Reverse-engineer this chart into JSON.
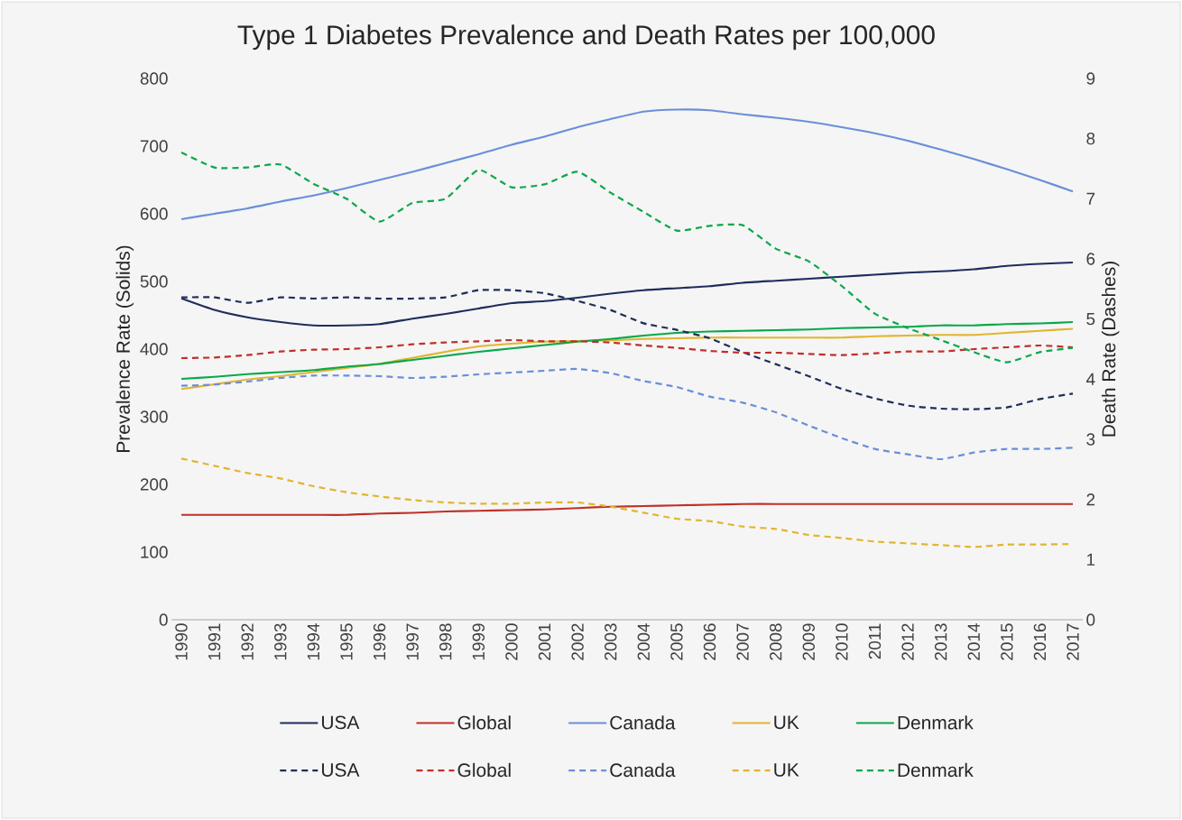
{
  "chart_data": {
    "type": "line",
    "title": "Type 1 Diabetes Prevalence and Death Rates per 100,000",
    "ylabel": "Prevalence Rate (Solids)",
    "y2label": "Death Rate (Dashes)",
    "categories": [
      "1990",
      "1991",
      "1992",
      "1993",
      "1994",
      "1995",
      "1996",
      "1997",
      "1998",
      "1999",
      "2000",
      "2001",
      "2002",
      "2003",
      "2004",
      "2005",
      "2006",
      "2007",
      "2008",
      "2009",
      "2010",
      "2011",
      "2012",
      "2013",
      "2014",
      "2015",
      "2016",
      "2017"
    ],
    "ylim": [
      0,
      800
    ],
    "yticks": [
      0,
      100,
      200,
      300,
      400,
      500,
      600,
      700,
      800
    ],
    "y2lim": [
      0,
      9
    ],
    "y2ticks": [
      0,
      1,
      2,
      3,
      4,
      5,
      6,
      7,
      8,
      9
    ],
    "grid": false,
    "legend": "bottom",
    "marker": "none",
    "series": [
      {
        "name": "USA",
        "color": "#1f2d5c",
        "line_style": "solid",
        "values": [
          475,
          458,
          447,
          440,
          435,
          435,
          437,
          445,
          452,
          460,
          468,
          471,
          476,
          482,
          487,
          490,
          493,
          498,
          501,
          504,
          507,
          510,
          513,
          515,
          518,
          523,
          526,
          528
        ]
      },
      {
        "name": "Global",
        "color": "#c0302a",
        "line_style": "solid",
        "values": [
          155,
          155,
          155,
          155,
          155,
          155,
          157,
          158,
          160,
          161,
          162,
          163,
          165,
          167,
          168,
          169,
          170,
          171,
          171,
          171,
          171,
          171,
          171,
          171,
          171,
          171,
          171,
          171
        ]
      },
      {
        "name": "Canada",
        "color": "#6a8fd8",
        "line_style": "solid",
        "values": [
          592,
          600,
          608,
          618,
          627,
          638,
          650,
          662,
          675,
          688,
          702,
          714,
          728,
          740,
          751,
          754,
          753,
          747,
          742,
          736,
          728,
          719,
          708,
          695,
          681,
          666,
          650,
          633
        ]
      },
      {
        "name": "UK",
        "color": "#e2b530",
        "line_style": "solid",
        "values": [
          341,
          348,
          355,
          360,
          366,
          372,
          378,
          387,
          396,
          404,
          408,
          411,
          412,
          413,
          415,
          416,
          417,
          417,
          417,
          417,
          417,
          419,
          420,
          421,
          421,
          424,
          427,
          430
        ]
      },
      {
        "name": "Denmark",
        "color": "#0aa84a",
        "line_style": "solid",
        "values": [
          356,
          359,
          363,
          366,
          369,
          374,
          378,
          384,
          390,
          396,
          401,
          406,
          411,
          415,
          420,
          424,
          426,
          427,
          428,
          429,
          431,
          432,
          433,
          435,
          435,
          437,
          438,
          440
        ]
      },
      {
        "name": "USA",
        "color": "#1f2d5c",
        "line_style": "dashed",
        "axis": "y2",
        "values": [
          5.36,
          5.36,
          5.27,
          5.36,
          5.34,
          5.36,
          5.34,
          5.34,
          5.36,
          5.48,
          5.48,
          5.43,
          5.3,
          5.15,
          4.93,
          4.82,
          4.68,
          4.45,
          4.25,
          4.05,
          3.84,
          3.68,
          3.56,
          3.51,
          3.5,
          3.53,
          3.67,
          3.76
        ]
      },
      {
        "name": "Global",
        "color": "#c0302a",
        "line_style": "dashed",
        "axis": "y2",
        "values": [
          4.35,
          4.36,
          4.4,
          4.46,
          4.49,
          4.5,
          4.53,
          4.58,
          4.61,
          4.63,
          4.65,
          4.63,
          4.63,
          4.61,
          4.56,
          4.52,
          4.47,
          4.44,
          4.44,
          4.42,
          4.4,
          4.43,
          4.46,
          4.46,
          4.5,
          4.53,
          4.56,
          4.53
        ]
      },
      {
        "name": "Canada",
        "color": "#6a8fd8",
        "line_style": "dashed",
        "axis": "y2",
        "values": [
          3.89,
          3.91,
          3.96,
          4.02,
          4.06,
          4.06,
          4.05,
          4.02,
          4.04,
          4.08,
          4.11,
          4.14,
          4.17,
          4.1,
          3.97,
          3.87,
          3.71,
          3.61,
          3.45,
          3.23,
          3.02,
          2.84,
          2.75,
          2.67,
          2.78,
          2.84,
          2.84,
          2.86
        ]
      },
      {
        "name": "UK",
        "color": "#e2b530",
        "line_style": "dashed",
        "axis": "y2",
        "values": [
          2.68,
          2.56,
          2.44,
          2.35,
          2.22,
          2.12,
          2.05,
          1.99,
          1.95,
          1.93,
          1.93,
          1.95,
          1.95,
          1.88,
          1.78,
          1.68,
          1.64,
          1.55,
          1.51,
          1.41,
          1.36,
          1.3,
          1.27,
          1.24,
          1.21,
          1.25,
          1.25,
          1.26
        ]
      },
      {
        "name": "Denmark",
        "color": "#0aa84a",
        "line_style": "dashed",
        "axis": "y2",
        "values": [
          7.77,
          7.52,
          7.52,
          7.57,
          7.25,
          7.0,
          6.62,
          6.93,
          7.0,
          7.48,
          7.19,
          7.24,
          7.45,
          7.1,
          6.78,
          6.47,
          6.55,
          6.56,
          6.17,
          5.96,
          5.55,
          5.09,
          4.85,
          4.65,
          4.45,
          4.28,
          4.45,
          4.52
        ]
      }
    ]
  }
}
